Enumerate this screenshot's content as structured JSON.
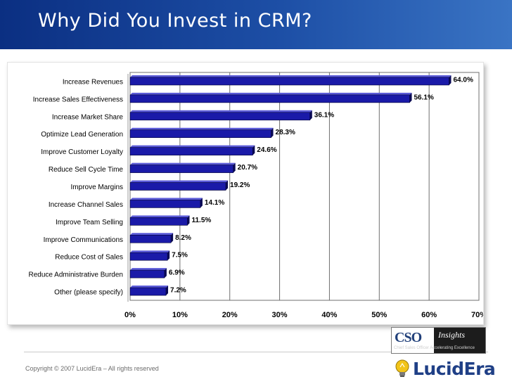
{
  "slide": {
    "title": "Why Did You Invest in CRM?",
    "copyright": "Copyright © 2007 LucidEra – All rights reserved"
  },
  "logos": {
    "cso": {
      "main": "CSO",
      "sub": "Insights",
      "tagline": "Chief Sales Officer   Accelerating Excellence"
    },
    "lucidera": {
      "brand": "LucidEra",
      "icon": "lightbulb-icon"
    }
  },
  "colors": {
    "bar": "#1a1aa8",
    "bar_dark": "#0a0a55",
    "title_bg": "#1d4fa6"
  },
  "chart_data": {
    "type": "bar",
    "orientation": "horizontal",
    "title": "",
    "xlabel": "",
    "ylabel": "",
    "categories": [
      "Increase Revenues",
      "Increase Sales Effectiveness",
      "Increase Market Share",
      "Optimize Lead Generation",
      "Improve Customer Loyalty",
      "Reduce Sell Cycle Time",
      "Improve Margins",
      "Increase Channel Sales",
      "Improve Team Selling",
      "Improve Communications",
      "Reduce Cost of Sales",
      "Reduce Administrative Burden",
      "Other (please specify)"
    ],
    "values": [
      64.0,
      56.1,
      36.1,
      28.3,
      24.6,
      20.7,
      19.2,
      14.1,
      11.5,
      8.2,
      7.5,
      6.9,
      7.2
    ],
    "value_labels": [
      "64.0%",
      "56.1%",
      "36.1%",
      "28.3%",
      "24.6%",
      "20.7%",
      "19.2%",
      "14.1%",
      "11.5%",
      "8.2%",
      "7.5%",
      "6.9%",
      "7.2%"
    ],
    "xlim": [
      0,
      70
    ],
    "x_ticks": [
      "0%",
      "10%",
      "20%",
      "30%",
      "40%",
      "50%",
      "60%",
      "70%"
    ],
    "grid": true,
    "legend": "none"
  }
}
